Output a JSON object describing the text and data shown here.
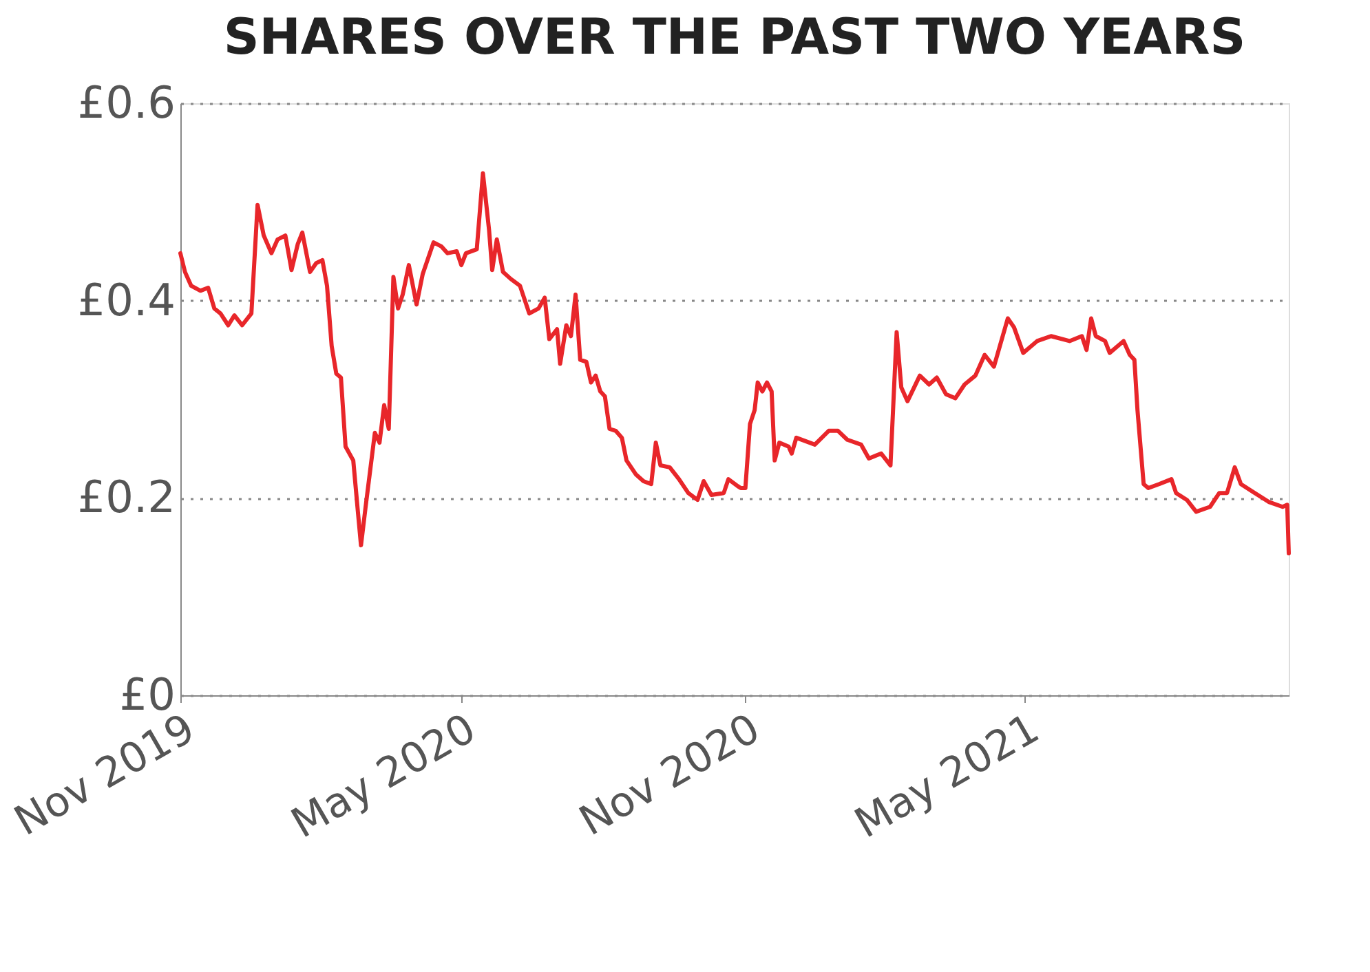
{
  "chart_data": {
    "type": "line",
    "title": "SHARES OVER THE PAST TWO YEARS",
    "xlim": [
      "2019-11-01",
      "2021-10-19"
    ],
    "xticks": [
      {
        "value": "2019-11-01",
        "label": "Nov 2019"
      },
      {
        "value": "2020-05-01",
        "label": "May 2020"
      },
      {
        "value": "2020-11-01",
        "label": "Nov 2020"
      },
      {
        "value": "2021-05-01",
        "label": "May 2021"
      }
    ],
    "ylim": [
      0,
      0.6
    ],
    "yticks": [
      {
        "value": 0,
        "label": "£0"
      },
      {
        "value": 0.2,
        "label": "£0.2"
      },
      {
        "value": 0.4,
        "label": "£0.4"
      },
      {
        "value": 0.6,
        "label": "£0.6"
      }
    ],
    "grid": "y",
    "series": [
      {
        "color": "#e8262a",
        "x": [
          "2019-11-01",
          "2019-11-04",
          "2019-11-08",
          "2019-11-14",
          "2019-11-19",
          "2019-11-23",
          "2019-11-27",
          "2019-12-02",
          "2019-12-06",
          "2019-12-11",
          "2019-12-17",
          "2019-12-21",
          "2019-12-25",
          "2019-12-30",
          "2020-01-03",
          "2020-01-08",
          "2020-01-12",
          "2020-01-16",
          "2020-01-19",
          "2020-01-24",
          "2020-01-28",
          "2020-02-01",
          "2020-02-04",
          "2020-02-07",
          "2020-02-10",
          "2020-02-13",
          "2020-02-16",
          "2020-02-21",
          "2020-02-24",
          "2020-02-26",
          "2020-02-29",
          "2020-03-06",
          "2020-03-09",
          "2020-03-12",
          "2020-03-15",
          "2020-03-18",
          "2020-03-21",
          "2020-03-24",
          "2020-03-28",
          "2020-04-02",
          "2020-04-06",
          "2020-04-13",
          "2020-04-18",
          "2020-04-22",
          "2020-04-28",
          "2020-05-01",
          "2020-05-04",
          "2020-05-11",
          "2020-05-15",
          "2020-05-19",
          "2020-05-21",
          "2020-05-24",
          "2020-05-28",
          "2020-06-02",
          "2020-06-08",
          "2020-06-14",
          "2020-06-20",
          "2020-06-24",
          "2020-06-27",
          "2020-07-02",
          "2020-07-04",
          "2020-07-08",
          "2020-07-11",
          "2020-07-14",
          "2020-07-17",
          "2020-07-21",
          "2020-07-24",
          "2020-07-27",
          "2020-07-30",
          "2020-08-02",
          "2020-08-05",
          "2020-08-09",
          "2020-08-13",
          "2020-08-16",
          "2020-08-22",
          "2020-08-27",
          "2020-09-01",
          "2020-09-04",
          "2020-09-07",
          "2020-09-13",
          "2020-09-19",
          "2020-09-25",
          "2020-10-01",
          "2020-10-05",
          "2020-10-10",
          "2020-10-18",
          "2020-10-21",
          "2020-10-27",
          "2020-10-29",
          "2020-11-01",
          "2020-11-04",
          "2020-11-07",
          "2020-11-09",
          "2020-11-12",
          "2020-11-15",
          "2020-11-18",
          "2020-11-20",
          "2020-11-23",
          "2020-11-29",
          "2020-12-01",
          "2020-12-04",
          "2020-12-16",
          "2020-12-25",
          "2020-12-31",
          "2021-01-06",
          "2021-01-15",
          "2021-01-20",
          "2021-01-28",
          "2021-02-03",
          "2021-02-07",
          "2021-02-10",
          "2021-02-14",
          "2021-02-22",
          "2021-02-28",
          "2021-03-05",
          "2021-03-11",
          "2021-03-17",
          "2021-03-23",
          "2021-03-30",
          "2021-04-05",
          "2021-04-11",
          "2021-04-20",
          "2021-04-24",
          "2021-04-30",
          "2021-05-09",
          "2021-05-18",
          "2021-05-30",
          "2021-06-07",
          "2021-06-10",
          "2021-06-13",
          "2021-06-16",
          "2021-06-22",
          "2021-06-25",
          "2021-07-04",
          "2021-07-08",
          "2021-07-11",
          "2021-07-13",
          "2021-07-17",
          "2021-07-20",
          "2021-07-27",
          "2021-08-04",
          "2021-08-07",
          "2021-08-14",
          "2021-08-20",
          "2021-08-29",
          "2021-09-04",
          "2021-09-09",
          "2021-09-14",
          "2021-09-18",
          "2021-09-27",
          "2021-10-06",
          "2021-10-15",
          "2021-10-18",
          "2021-10-19"
        ],
        "values": [
          0.448,
          0.429,
          0.415,
          0.41,
          0.413,
          0.392,
          0.387,
          0.375,
          0.385,
          0.375,
          0.387,
          0.497,
          0.466,
          0.448,
          0.462,
          0.466,
          0.431,
          0.457,
          0.469,
          0.429,
          0.438,
          0.441,
          0.415,
          0.354,
          0.326,
          0.322,
          0.252,
          0.238,
          0.186,
          0.152,
          0.191,
          0.266,
          0.256,
          0.294,
          0.27,
          0.424,
          0.392,
          0.406,
          0.436,
          0.396,
          0.427,
          0.459,
          0.455,
          0.448,
          0.45,
          0.436,
          0.448,
          0.452,
          0.529,
          0.471,
          0.431,
          0.462,
          0.429,
          0.422,
          0.415,
          0.387,
          0.392,
          0.403,
          0.361,
          0.371,
          0.336,
          0.375,
          0.364,
          0.406,
          0.34,
          0.338,
          0.317,
          0.324,
          0.308,
          0.303,
          0.27,
          0.268,
          0.261,
          0.238,
          0.224,
          0.217,
          0.214,
          0.256,
          0.233,
          0.231,
          0.219,
          0.205,
          0.198,
          0.217,
          0.203,
          0.205,
          0.219,
          0.212,
          0.21,
          0.21,
          0.275,
          0.289,
          0.317,
          0.308,
          0.317,
          0.308,
          0.238,
          0.256,
          0.252,
          0.245,
          0.261,
          0.254,
          0.268,
          0.268,
          0.259,
          0.254,
          0.24,
          0.245,
          0.233,
          0.368,
          0.312,
          0.298,
          0.324,
          0.315,
          0.322,
          0.305,
          0.301,
          0.315,
          0.324,
          0.345,
          0.333,
          0.382,
          0.373,
          0.347,
          0.359,
          0.364,
          0.359,
          0.364,
          0.35,
          0.382,
          0.364,
          0.359,
          0.347,
          0.359,
          0.345,
          0.34,
          0.289,
          0.214,
          0.21,
          0.214,
          0.219,
          0.205,
          0.198,
          0.186,
          0.191,
          0.205,
          0.205,
          0.231,
          0.214,
          0.205,
          0.196,
          0.191,
          0.193,
          0.144
        ]
      }
    ]
  }
}
